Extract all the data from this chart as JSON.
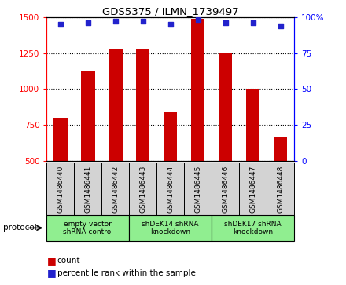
{
  "title": "GDS5375 / ILMN_1739497",
  "samples": [
    "GSM1486440",
    "GSM1486441",
    "GSM1486442",
    "GSM1486443",
    "GSM1486444",
    "GSM1486445",
    "GSM1486446",
    "GSM1486447",
    "GSM1486448"
  ],
  "counts": [
    800,
    1120,
    1280,
    1275,
    840,
    1490,
    1250,
    1000,
    665
  ],
  "percentile_ranks": [
    95,
    96,
    97,
    97,
    95,
    98,
    96,
    96,
    94
  ],
  "ylim_left": [
    500,
    1500
  ],
  "ylim_right": [
    0,
    100
  ],
  "yticks_left": [
    500,
    750,
    1000,
    1250,
    1500
  ],
  "yticks_right": [
    0,
    25,
    50,
    75,
    100
  ],
  "group_starts": [
    0,
    3,
    6
  ],
  "group_ends": [
    3,
    6,
    9
  ],
  "group_labels": [
    "empty vector\nshRNA control",
    "shDEK14 shRNA\nknockdown",
    "shDEK17 shRNA\nknockdown"
  ],
  "bar_color": "#CC0000",
  "dot_color": "#2222CC",
  "protocol_label": "protocol",
  "legend_count": "count",
  "legend_percentile": "percentile rank within the sample",
  "sample_bg_color": "#d3d3d3",
  "group_bg_color": "#90EE90",
  "bar_width": 0.5
}
